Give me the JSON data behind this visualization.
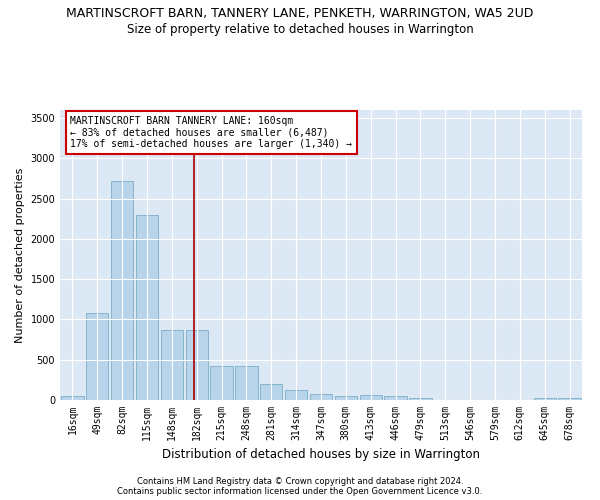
{
  "title": "MARTINSCROFT BARN, TANNERY LANE, PENKETH, WARRINGTON, WA5 2UD",
  "subtitle": "Size of property relative to detached houses in Warrington",
  "xlabel": "Distribution of detached houses by size in Warrington",
  "ylabel": "Number of detached properties",
  "categories": [
    "16sqm",
    "49sqm",
    "82sqm",
    "115sqm",
    "148sqm",
    "182sqm",
    "215sqm",
    "248sqm",
    "281sqm",
    "314sqm",
    "347sqm",
    "380sqm",
    "413sqm",
    "446sqm",
    "479sqm",
    "513sqm",
    "546sqm",
    "579sqm",
    "612sqm",
    "645sqm",
    "678sqm"
  ],
  "values": [
    45,
    1080,
    2720,
    2300,
    870,
    870,
    420,
    420,
    200,
    130,
    70,
    50,
    65,
    50,
    20,
    0,
    0,
    0,
    0,
    20,
    20
  ],
  "bar_color": "#b8d4eb",
  "bar_edge_color": "#7aaec8",
  "vline_color": "#aa0000",
  "vline_x_idx": 4.9,
  "annotation_title": "MARTINSCROFT BARN TANNERY LANE: 160sqm",
  "annotation_line1": "← 83% of detached houses are smaller (6,487)",
  "annotation_line2": "17% of semi-detached houses are larger (1,340) →",
  "annotation_box_color": "#ffffff",
  "annotation_box_edge": "#cc0000",
  "ylim": [
    0,
    3600
  ],
  "yticks": [
    0,
    500,
    1000,
    1500,
    2000,
    2500,
    3000,
    3500
  ],
  "bg_color": "#dde8f5",
  "footer1": "Contains HM Land Registry data © Crown copyright and database right 2024.",
  "footer2": "Contains public sector information licensed under the Open Government Licence v3.0.",
  "title_fontsize": 9,
  "subtitle_fontsize": 8.5,
  "ylabel_fontsize": 8,
  "xlabel_fontsize": 8.5,
  "tick_fontsize": 7,
  "annot_fontsize": 7,
  "footer_fontsize": 6
}
